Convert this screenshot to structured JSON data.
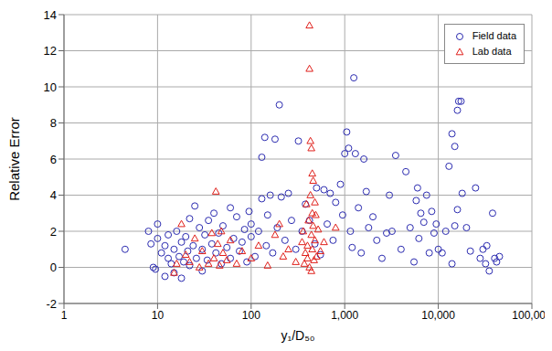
{
  "chart_data": {
    "type": "scatter",
    "x_label": "y₁/D₅₀",
    "y_label": "Relative Error",
    "log": "x",
    "grid": true,
    "legend": "top-right",
    "xlim": [
      1,
      100000
    ],
    "xticks": [
      1,
      10,
      100,
      {
        "value": 1000,
        "label": "1,000"
      },
      {
        "value": 10000,
        "label": "10,000"
      },
      {
        "value": 100000,
        "label": "100,000"
      }
    ],
    "ylim": [
      -2,
      14
    ],
    "yticks": [
      -2,
      0,
      2,
      4,
      6,
      8,
      10,
      12,
      14
    ],
    "series": [
      {
        "name": "Field data",
        "color": "#2b2bb0",
        "marker": "circle",
        "x": [
          4.5,
          8,
          8.5,
          9,
          9.5,
          10,
          10,
          11,
          12,
          12,
          13,
          13,
          14,
          15,
          15,
          16,
          17,
          18,
          18,
          19,
          20,
          21,
          22,
          22,
          24,
          25,
          26,
          28,
          30,
          30,
          32,
          34,
          35,
          38,
          40,
          42,
          45,
          48,
          50,
          55,
          60,
          60,
          65,
          70,
          75,
          80,
          85,
          90,
          95,
          100,
          100,
          110,
          120,
          130,
          130,
          140,
          145,
          150,
          160,
          170,
          180,
          190,
          200,
          210,
          230,
          250,
          270,
          300,
          320,
          350,
          380,
          420,
          480,
          500,
          550,
          600,
          650,
          700,
          750,
          800,
          900,
          950,
          1000,
          1050,
          1100,
          1150,
          1200,
          1250,
          1300,
          1400,
          1500,
          1600,
          1700,
          1800,
          2000,
          2200,
          2500,
          2800,
          3000,
          3200,
          3500,
          4000,
          4500,
          5000,
          5500,
          5800,
          6000,
          6200,
          6500,
          7000,
          7500,
          8000,
          8500,
          9000,
          9500,
          10000,
          11000,
          12000,
          13000,
          14000,
          15000,
          16000,
          16500,
          17500,
          16000,
          15000,
          18000,
          20000,
          22000,
          25000,
          28000,
          30000,
          32000,
          35000,
          38000,
          40000,
          42000,
          45000,
          33000,
          14000
        ],
        "values": [
          1.0,
          2.0,
          1.3,
          0.0,
          -0.1,
          2.4,
          1.6,
          0.8,
          -0.5,
          1.2,
          0.5,
          1.8,
          0.2,
          1.0,
          -0.3,
          2.0,
          0.6,
          1.4,
          -0.6,
          0.3,
          1.7,
          0.9,
          2.7,
          0.1,
          1.2,
          3.4,
          0.5,
          2.2,
          1.0,
          -0.2,
          1.8,
          0.4,
          2.6,
          1.3,
          3.0,
          0.8,
          1.9,
          0.2,
          2.3,
          1.1,
          3.3,
          0.5,
          1.6,
          2.8,
          0.9,
          1.4,
          2.1,
          0.3,
          3.1,
          1.7,
          2.4,
          0.6,
          2.0,
          6.1,
          3.8,
          7.2,
          1.2,
          2.9,
          4.0,
          0.8,
          7.1,
          2.2,
          9.0,
          3.9,
          1.5,
          4.1,
          2.6,
          1.0,
          7.0,
          2.0,
          3.5,
          2.6,
          1.3,
          4.4,
          0.7,
          4.3,
          2.4,
          4.1,
          1.5,
          3.6,
          4.6,
          2.9,
          6.3,
          7.5,
          6.6,
          2.0,
          1.1,
          10.5,
          6.3,
          3.3,
          0.8,
          6.0,
          4.2,
          2.2,
          2.8,
          1.5,
          0.5,
          1.9,
          4.0,
          2.0,
          6.2,
          1.0,
          5.3,
          2.2,
          0.3,
          3.7,
          4.4,
          1.6,
          3.0,
          2.5,
          4.0,
          0.8,
          3.1,
          1.9,
          2.4,
          1.0,
          0.8,
          2.0,
          5.6,
          7.4,
          6.7,
          8.7,
          9.2,
          9.2,
          3.2,
          2.3,
          4.1,
          2.2,
          0.9,
          4.4,
          0.5,
          1.0,
          0.2,
          -0.2,
          3.0,
          0.5,
          0.3,
          0.6,
          1.2,
          0.2
        ]
      },
      {
        "name": "Lab data",
        "color": "#e0201b",
        "marker": "triangle",
        "x": [
          15,
          16,
          18,
          20,
          22,
          25,
          28,
          30,
          35,
          38,
          40,
          42,
          44,
          46,
          48,
          50,
          55,
          60,
          70,
          80,
          100,
          120,
          150,
          180,
          200,
          220,
          250,
          300,
          350,
          360,
          370,
          380,
          390,
          400,
          400,
          410,
          420,
          420,
          420,
          430,
          430,
          440,
          440,
          440,
          450,
          450,
          450,
          460,
          460,
          470,
          480,
          480,
          490,
          500,
          520,
          550,
          800,
          600
        ],
        "values": [
          -0.3,
          0.2,
          2.4,
          0.7,
          0.3,
          1.6,
          0.0,
          0.9,
          0.2,
          1.9,
          0.5,
          4.2,
          1.3,
          0.1,
          2.0,
          0.8,
          0.4,
          1.5,
          0.2,
          0.9,
          0.5,
          1.2,
          0.1,
          1.8,
          2.4,
          0.6,
          1.0,
          0.3,
          1.4,
          2.0,
          0.2,
          0.8,
          3.5,
          1.2,
          0.5,
          2.6,
          13.4,
          11.0,
          0.0,
          7.0,
          4.0,
          6.6,
          1.8,
          -0.2,
          5.2,
          3.0,
          1.0,
          4.8,
          2.3,
          0.4,
          3.6,
          1.5,
          2.9,
          0.6,
          2.1,
          0.9,
          2.2,
          1.4
        ]
      }
    ]
  }
}
